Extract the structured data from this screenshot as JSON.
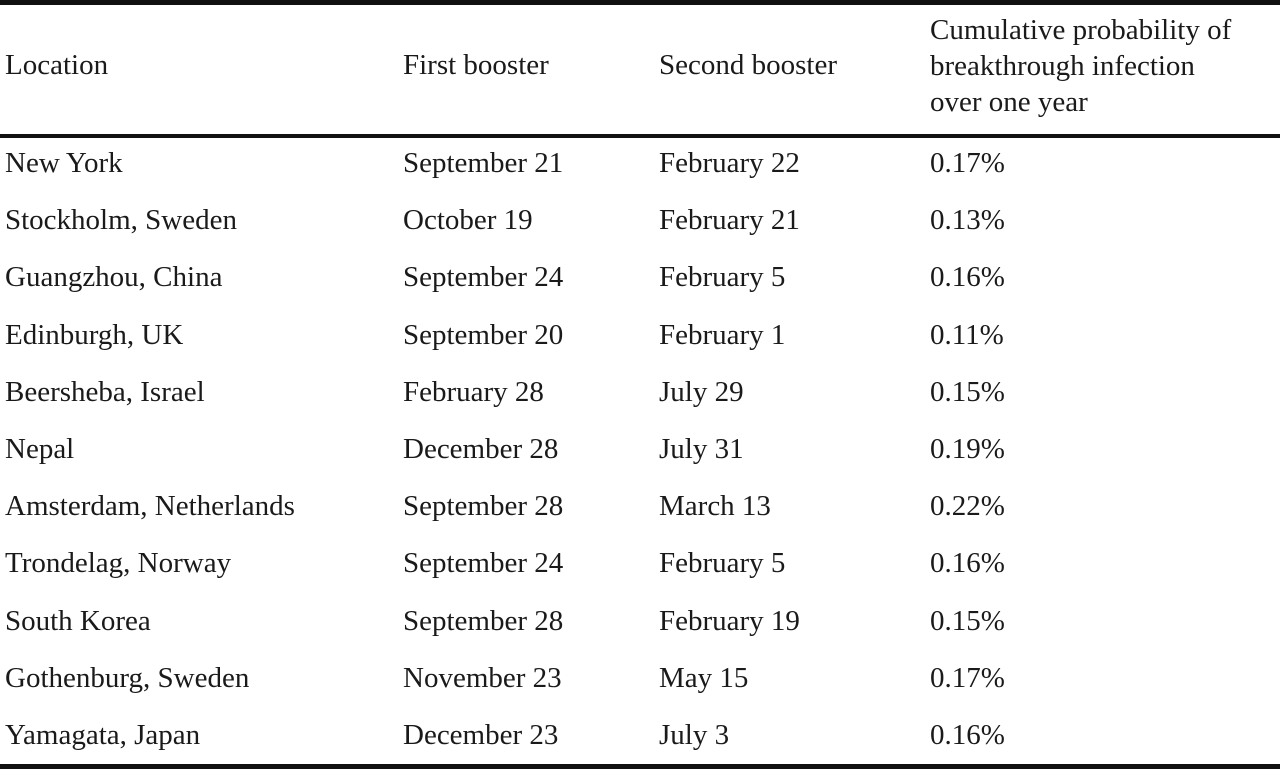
{
  "table": {
    "headers": {
      "location": "Location",
      "first_booster": "First booster",
      "second_booster": "Second booster",
      "probability_lines": [
        "Cumulative probability of",
        "breakthrough infection",
        "over one year"
      ]
    },
    "rows": [
      {
        "location": "New York",
        "first": "September 21",
        "second": "February 22",
        "prob": "0.17%"
      },
      {
        "location": "Stockholm, Sweden",
        "first": "October 19",
        "second": "February 21",
        "prob": "0.13%"
      },
      {
        "location": "Guangzhou, China",
        "first": "September 24",
        "second": "February 5",
        "prob": "0.16%"
      },
      {
        "location": "Edinburgh, UK",
        "first": "September 20",
        "second": "February 1",
        "prob": "0.11%"
      },
      {
        "location": "Beersheba, Israel",
        "first": "February 28",
        "second": "July 29",
        "prob": "0.15%"
      },
      {
        "location": "Nepal",
        "first": "December 28",
        "second": "July 31",
        "prob": "0.19%"
      },
      {
        "location": "Amsterdam, Netherlands",
        "first": "September 28",
        "second": "March 13",
        "prob": "0.22%"
      },
      {
        "location": "Trondelag, Norway",
        "first": "September 24",
        "second": "February 5",
        "prob": "0.16%"
      },
      {
        "location": "South Korea",
        "first": "September 28",
        "second": "February 19",
        "prob": "0.15%"
      },
      {
        "location": "Gothenburg, Sweden",
        "first": "November 23",
        "second": "May 15",
        "prob": "0.17%"
      },
      {
        "location": "Yamagata, Japan",
        "first": "December 23",
        "second": "July 3",
        "prob": "0.16%"
      }
    ]
  }
}
